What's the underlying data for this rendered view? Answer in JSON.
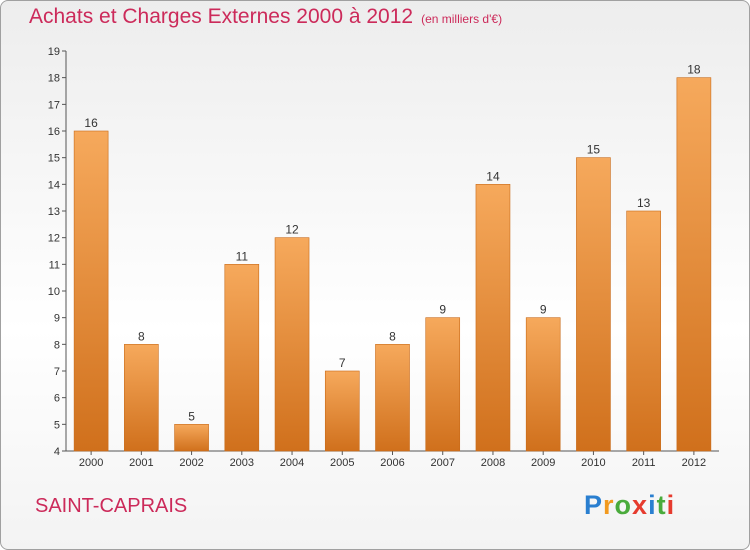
{
  "header": {
    "title": "Achats et Charges Externes 2000 à 2012",
    "unit": "(en milliers d'€)"
  },
  "footer": {
    "commune": "SAINT-CAPRAIS",
    "logo": [
      {
        "ch": "P",
        "color": "#2a7fd0"
      },
      {
        "ch": "r",
        "color": "#f29a1f"
      },
      {
        "ch": "o",
        "color": "#4aab3c"
      },
      {
        "ch": "x",
        "color": "#e63b2e"
      },
      {
        "ch": "i",
        "color": "#2a7fd0"
      },
      {
        "ch": "t",
        "color": "#4aab3c"
      },
      {
        "ch": "i",
        "color": "#e63b2e"
      }
    ]
  },
  "chart_data": {
    "type": "bar",
    "title": "Achats et Charges Externes 2000 à 2012",
    "subtitle": "(en milliers d'€)",
    "categories": [
      "2000",
      "2001",
      "2002",
      "2003",
      "2004",
      "2005",
      "2006",
      "2007",
      "2008",
      "2009",
      "2010",
      "2011",
      "2012"
    ],
    "values": [
      16,
      8,
      5,
      11,
      12,
      7,
      8,
      9,
      14,
      9,
      15,
      13,
      18
    ],
    "ylim": [
      4,
      19
    ],
    "yticks": [
      4,
      5,
      6,
      7,
      8,
      9,
      10,
      11,
      12,
      13,
      14,
      15,
      16,
      17,
      18,
      19
    ],
    "grid": false,
    "legend": "none",
    "colors": {
      "bar_light": "#f6a95c",
      "bar_dark": "#d0701c",
      "bar_edge": "#c86a18"
    }
  }
}
